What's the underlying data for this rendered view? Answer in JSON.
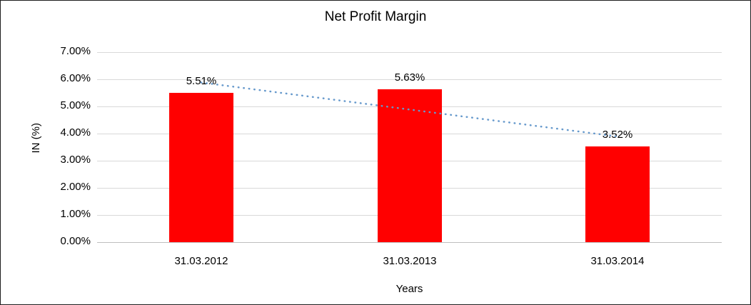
{
  "chart_data": {
    "type": "bar",
    "title": "Net Profit Margin",
    "categories": [
      "31.03.2012",
      "31.03.2013",
      "31.03.2014"
    ],
    "values": [
      5.51,
      5.63,
      3.52
    ],
    "value_labels": [
      "5.51%",
      "5.63%",
      "3.52%"
    ],
    "xlabel": "Years",
    "ylabel": "IN (%)",
    "ylim": [
      0,
      7
    ],
    "ytick_step": 1,
    "ytick_labels": [
      "0.00%",
      "1.00%",
      "2.00%",
      "3.00%",
      "4.00%",
      "5.00%",
      "6.00%",
      "7.00%"
    ],
    "bar_color": "#ff0000",
    "gridline_color": "#d9d9d9",
    "axis_line_color": "#bfbfbf",
    "trendline": {
      "type": "linear",
      "style": "dotted",
      "color": "#6699cc"
    },
    "grid": true,
    "legend": "none"
  }
}
